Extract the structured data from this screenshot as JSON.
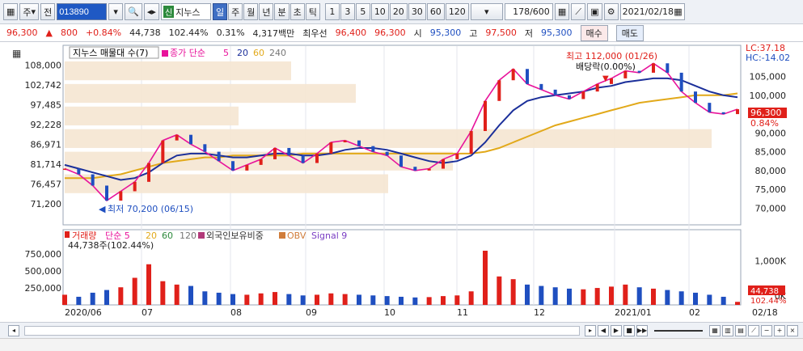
{
  "toolbar": {
    "period_label": "주",
    "prev_label": "전",
    "stock_code": "013890",
    "sin_badge": "신",
    "stock_name": "지누스",
    "period_tabs": [
      "일",
      "주",
      "월",
      "년",
      "분",
      "초",
      "틱"
    ],
    "active_period": "일",
    "intervals": [
      "1",
      "3",
      "5",
      "10",
      "20",
      "30",
      "60",
      "120"
    ],
    "data_count": "178/600",
    "date": "2021/02/18"
  },
  "quote": {
    "price": "96,300",
    "change": "800",
    "change_pct": "+0.84%",
    "volume": "44,738",
    "volume_ratio": "102.44%",
    "turnover": "0.31%",
    "amount": "4,317백만",
    "best_ask_label": "최우선",
    "ask": "96,400",
    "bid": "96,300",
    "open_label": "시",
    "open": "95,300",
    "high_label": "고",
    "high": "97,500",
    "low_label": "저",
    "low": "95,300",
    "buy_label": "매수",
    "sell_label": "매도"
  },
  "colors": {
    "up": "#e0201a",
    "down": "#1f4fc0",
    "ma5": "#e8139b",
    "ma20": "#1b2f9a",
    "ma60": "#e2a91a",
    "ma120": "#888888",
    "band": "#f5e6d2"
  },
  "price_panel": {
    "legend_prefix": "지누스 매물대 수(7)",
    "ma_label": "종가 단순",
    "ma_periods": [
      "5",
      "20",
      "60",
      "240"
    ],
    "left_ticks": [
      "108,000",
      "102,742",
      "97,485",
      "92,228",
      "86,971",
      "81,714",
      "76,457",
      "71,200"
    ],
    "right_ticks": [
      "105,000",
      "100,000",
      "95,000",
      "90,000",
      "85,000",
      "80,000",
      "75,000",
      "70,000"
    ],
    "lc_label": "LC:37.18",
    "hc_label": "HC:-14.02",
    "current_price": "96,300",
    "current_pct": "0.84%",
    "high_annotation": "최고 112,000 (01/26)",
    "dividend_annotation": "배당락(0.00%)",
    "low_annotation": "최저 70,200 (06/15)"
  },
  "volume_panel": {
    "legend_volume": "거래량",
    "legend_ma": "단순 5",
    "legend_periods": [
      "20",
      "60",
      "120"
    ],
    "legend_foreign": "외국인보유비중",
    "legend_obv": "OBV",
    "legend_signal": "Signal 9",
    "left_ticks": [
      "750,000",
      "500,000",
      "250,000"
    ],
    "right_ticks": [
      "1,000K",
      "0K"
    ],
    "current_volume": "44,738",
    "current_ratio": "102.44%",
    "current_annotation": "44,738주(102.44%)"
  },
  "x_axis": [
    "2020/06",
    "07",
    "08",
    "09",
    "10",
    "11",
    "12",
    "2021/01",
    "02",
    "02/18"
  ],
  "chart_data": {
    "type": "line",
    "x_range": [
      "2020/06",
      "2021/02/18"
    ],
    "close_series": [
      80500,
      79000,
      76000,
      72000,
      74500,
      77000,
      82000,
      88000,
      89500,
      87000,
      85000,
      82500,
      80000,
      81500,
      83000,
      86000,
      84000,
      82000,
      84500,
      87500,
      88000,
      86500,
      85000,
      84000,
      81000,
      80000,
      80500,
      83000,
      84500,
      90500,
      98500,
      104000,
      107000,
      103000,
      101500,
      100000,
      99000,
      101000,
      103000,
      104500,
      106500,
      106000,
      108500,
      106000,
      101000,
      98000,
      95500,
      95000,
      96300
    ],
    "ma20_series": [
      81500,
      80500,
      79500,
      78500,
      77500,
      78000,
      79500,
      82000,
      84000,
      84500,
      84500,
      84000,
      83500,
      83500,
      84000,
      84500,
      84500,
      84000,
      84000,
      84500,
      85500,
      86000,
      86000,
      85500,
      84500,
      83500,
      82500,
      82000,
      82500,
      84000,
      87500,
      92000,
      96000,
      98500,
      99500,
      100000,
      100500,
      101000,
      102000,
      102500,
      103500,
      104000,
      104500,
      104500,
      104000,
      102500,
      101000,
      100000,
      99500
    ],
    "ma60_series": [
      78000,
      78000,
      78000,
      78500,
      79000,
      80000,
      81000,
      82000,
      82500,
      83000,
      83500,
      83500,
      84000,
      84000,
      84000,
      84000,
      84000,
      84500,
      84500,
      84500,
      84500,
      84500,
      84500,
      84500,
      84500,
      84500,
      84500,
      84500,
      84500,
      84500,
      85000,
      86000,
      87500,
      89000,
      90500,
      92000,
      93000,
      94000,
      95000,
      96000,
      97000,
      98000,
      98500,
      99000,
      99500,
      100000,
      100000,
      100000,
      100500
    ],
    "volume_k": [
      150,
      120,
      180,
      220,
      260,
      400,
      600,
      350,
      300,
      280,
      200,
      180,
      160,
      150,
      170,
      190,
      160,
      140,
      150,
      170,
      160,
      150,
      140,
      130,
      120,
      110,
      115,
      130,
      140,
      200,
      800,
      420,
      380,
      300,
      280,
      260,
      240,
      230,
      250,
      270,
      300,
      260,
      240,
      220,
      200,
      180,
      150,
      120,
      45
    ]
  }
}
